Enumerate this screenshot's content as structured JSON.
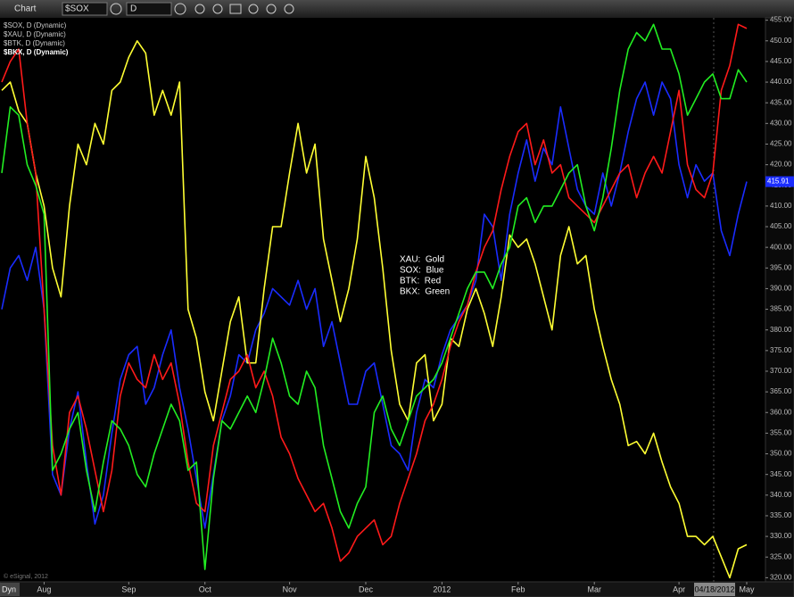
{
  "toolbar": {
    "title": "Chart",
    "symbol": "$SOX",
    "interval": "D"
  },
  "chart_data": {
    "type": "line",
    "annotation": [
      "XAU:  Gold",
      "SOX:  Blue",
      "BTK:  Red",
      "BKX:  Green"
    ],
    "copyright": "© eSignal, 2012",
    "scale_mode": "Dyn",
    "cursor_label": "04/18/2012",
    "price_marker": {
      "value": 415.91,
      "label": "415.91"
    },
    "grid": false,
    "categories": [
      null,
      null,
      null,
      null,
      null,
      "Aug",
      null,
      null,
      null,
      null,
      null,
      null,
      null,
      null,
      null,
      "Sep",
      null,
      null,
      null,
      null,
      null,
      null,
      null,
      null,
      "Oct",
      null,
      null,
      null,
      null,
      null,
      null,
      null,
      null,
      null,
      "Nov",
      null,
      null,
      null,
      null,
      null,
      null,
      null,
      null,
      "Dec",
      null,
      null,
      null,
      null,
      null,
      null,
      null,
      null,
      "2012",
      null,
      null,
      null,
      null,
      null,
      null,
      null,
      null,
      "Feb",
      null,
      null,
      null,
      null,
      null,
      null,
      null,
      null,
      "Mar",
      null,
      null,
      null,
      null,
      null,
      null,
      null,
      null,
      null,
      "Apr",
      null,
      null,
      null,
      null,
      null,
      null,
      null,
      "May"
    ],
    "series": [
      {
        "name": "$SOX, D (Dynamic)",
        "color": "#1a2cff",
        "values": [
          385,
          395,
          398,
          392,
          400,
          385,
          345,
          340,
          356,
          365,
          348,
          333,
          340,
          355,
          368,
          374,
          376,
          362,
          366,
          374,
          380,
          366,
          356,
          344,
          332,
          345,
          358,
          364,
          374,
          372,
          380,
          384,
          390,
          388,
          386,
          392,
          385,
          390,
          376,
          382,
          372,
          362,
          362,
          370,
          372,
          362,
          352,
          350,
          346,
          360,
          368,
          366,
          374,
          380,
          383,
          386,
          392,
          408,
          405,
          392,
          408,
          418,
          426,
          416,
          424,
          420,
          434,
          424,
          414,
          410,
          408,
          418,
          410,
          418,
          428,
          436,
          440,
          432,
          440,
          436,
          420,
          412,
          420,
          416,
          418,
          404,
          398,
          408,
          415.91
        ]
      },
      {
        "name": "$XAU, D (Dynamic)",
        "color": "#ffff33",
        "values": [
          438,
          440,
          433,
          430,
          418,
          410,
          395,
          388,
          410,
          425,
          420,
          430,
          425,
          438,
          440,
          446,
          450,
          447,
          432,
          438,
          432,
          440,
          385,
          378,
          365,
          358,
          370,
          382,
          388,
          372,
          372,
          390,
          405,
          405,
          418,
          430,
          418,
          425,
          402,
          392,
          382,
          390,
          402,
          422,
          412,
          395,
          375,
          362,
          358,
          372,
          374,
          358,
          362,
          378,
          376,
          385,
          390,
          384,
          376,
          388,
          403,
          400,
          402,
          396,
          388,
          380,
          398,
          405,
          396,
          398,
          385,
          376,
          368,
          362,
          352,
          353,
          350,
          355,
          348,
          342,
          338,
          330,
          330,
          328,
          330,
          325,
          320,
          327,
          328
        ]
      },
      {
        "name": "$BTK, D (Dynamic)",
        "color": "#ff1a1a",
        "values": [
          440,
          445,
          448,
          430,
          418,
          385,
          352,
          340,
          360,
          364,
          356,
          346,
          336,
          346,
          364,
          372,
          368,
          366,
          374,
          368,
          372,
          362,
          348,
          338,
          336,
          352,
          360,
          368,
          370,
          374,
          366,
          370,
          364,
          354,
          350,
          344,
          340,
          336,
          338,
          332,
          324,
          326,
          330,
          332,
          334,
          328,
          330,
          338,
          344,
          350,
          358,
          362,
          368,
          376,
          382,
          386,
          394,
          400,
          404,
          414,
          422,
          428,
          430,
          420,
          426,
          418,
          420,
          412,
          410,
          408,
          406,
          410,
          414,
          418,
          420,
          412,
          418,
          422,
          418,
          428,
          438,
          420,
          414,
          412,
          418,
          438,
          444,
          454,
          453
        ]
      },
      {
        "name": "$BKX, D (Dynamic)",
        "color": "#22ee22",
        "values": [
          418,
          434,
          432,
          420,
          415,
          408,
          346,
          350,
          356,
          360,
          346,
          336,
          348,
          358,
          356,
          352,
          345,
          342,
          350,
          356,
          362,
          358,
          346,
          348,
          322,
          344,
          358,
          356,
          360,
          364,
          360,
          368,
          378,
          372,
          364,
          362,
          370,
          366,
          352,
          344,
          336,
          332,
          338,
          342,
          360,
          364,
          356,
          352,
          358,
          364,
          366,
          368,
          372,
          378,
          384,
          390,
          394,
          394,
          390,
          396,
          400,
          410,
          412,
          406,
          410,
          410,
          414,
          418,
          420,
          410,
          404,
          412,
          424,
          438,
          448,
          452,
          450,
          454,
          448,
          448,
          442,
          432,
          436,
          440,
          442,
          436,
          436,
          443,
          440
        ]
      }
    ],
    "ylim": [
      319,
      456
    ],
    "yticks": [
      {
        "value": 320,
        "label": "320.00"
      },
      {
        "value": 325,
        "label": "325.00"
      },
      {
        "value": 330,
        "label": "330.00"
      },
      {
        "value": 335,
        "label": "335.00"
      },
      {
        "value": 340,
        "label": "340.00"
      },
      {
        "value": 345,
        "label": "345.00"
      },
      {
        "value": 350,
        "label": "350.00"
      },
      {
        "value": 355,
        "label": "355.00"
      },
      {
        "value": 360,
        "label": "360.00"
      },
      {
        "value": 365,
        "label": "365.00"
      },
      {
        "value": 370,
        "label": "370.00"
      },
      {
        "value": 375,
        "label": "375.00"
      },
      {
        "value": 380,
        "label": "380.00"
      },
      {
        "value": 385,
        "label": "385.00"
      },
      {
        "value": 390,
        "label": "390.00"
      },
      {
        "value": 395,
        "label": "395.00"
      },
      {
        "value": 400,
        "label": "400.00"
      },
      {
        "value": 405,
        "label": "405.00"
      },
      {
        "value": 410,
        "label": "410.00"
      },
      {
        "value": 415,
        "label": "415.00"
      },
      {
        "value": 420,
        "label": "420.00"
      },
      {
        "value": 425,
        "label": "425.00"
      },
      {
        "value": 430,
        "label": "430.00"
      },
      {
        "value": 435,
        "label": "435.00"
      },
      {
        "value": 440,
        "label": "440.00"
      },
      {
        "value": 445,
        "label": "445.00"
      },
      {
        "value": 450,
        "label": "450.00"
      },
      {
        "value": 455,
        "label": "455.00"
      }
    ]
  }
}
